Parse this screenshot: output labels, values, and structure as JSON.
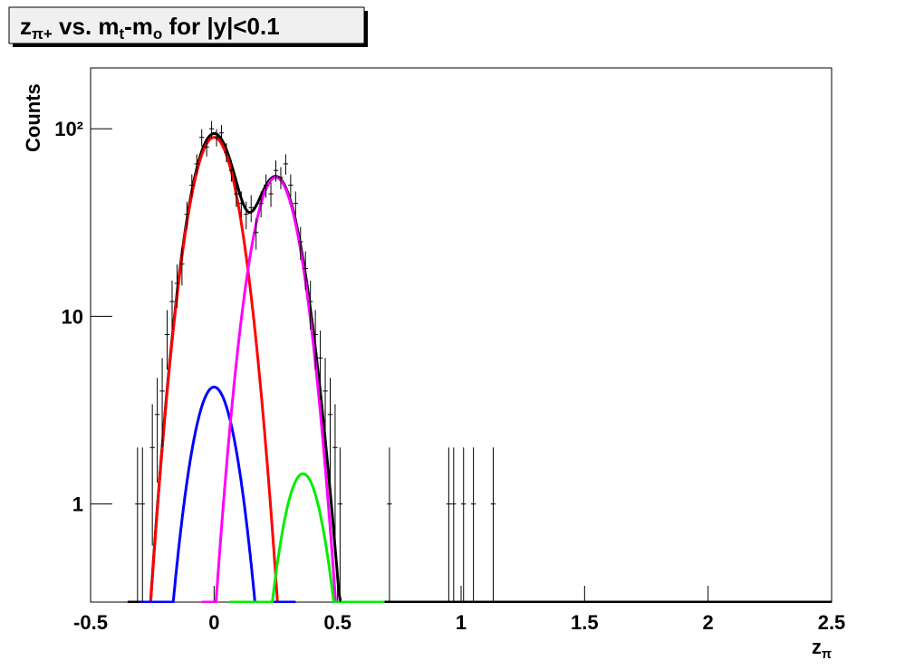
{
  "chart_data": {
    "type": "histogram-fit",
    "title": [
      {
        "text": "z"
      },
      {
        "text": "π+",
        "sub": true
      },
      {
        "text": " vs. m"
      },
      {
        "text": "t",
        "sub": true
      },
      {
        "text": "-m"
      },
      {
        "text": "o",
        "sub": true
      },
      {
        "text": " for |y|<0.1"
      }
    ],
    "x_label": [
      {
        "text": "z"
      },
      {
        "text": "π",
        "sub": true
      }
    ],
    "y_label": "Counts",
    "log_y": true,
    "xlim": [
      -0.5,
      2.5
    ],
    "ylim": [
      0.3,
      211
    ],
    "xticks": [
      -0.5,
      0,
      0.5,
      1,
      1.5,
      2,
      2.5
    ],
    "yticks": [
      1,
      10,
      {
        "value": 100,
        "label": "10²"
      }
    ],
    "x": [
      -0.31,
      -0.29,
      -0.25,
      -0.23,
      -0.21,
      -0.19,
      -0.17,
      -0.15,
      -0.13,
      -0.11,
      -0.09,
      -0.07,
      -0.05,
      -0.03,
      -0.01,
      0.01,
      0.03,
      0.05,
      0.07,
      0.09,
      0.11,
      0.13,
      0.15,
      0.17,
      0.19,
      0.21,
      0.23,
      0.25,
      0.27,
      0.29,
      0.31,
      0.33,
      0.35,
      0.37,
      0.39,
      0.41,
      0.43,
      0.45,
      0.47,
      0.49,
      0.51,
      0.71,
      0.95,
      0.97,
      1.01,
      1.05,
      1.13
    ],
    "values": [
      1,
      1,
      2,
      3,
      4,
      8,
      12,
      15,
      19,
      35,
      50,
      65,
      90,
      80,
      100,
      90,
      95,
      75,
      60,
      45,
      40,
      35,
      38,
      28,
      40,
      50,
      45,
      60,
      55,
      65,
      50,
      40,
      25,
      18,
      12,
      8,
      6,
      4,
      3,
      2,
      1,
      1,
      1,
      1,
      1,
      1,
      1
    ],
    "errors": [
      1,
      1,
      1.4,
      1.7,
      2,
      2.8,
      3.5,
      3.9,
      4.4,
      5.9,
      7.1,
      8.1,
      9.5,
      8.9,
      10,
      9.5,
      9.7,
      8.7,
      7.7,
      6.7,
      6.3,
      5.9,
      6.2,
      5.3,
      6.3,
      7.1,
      6.7,
      7.7,
      7.4,
      8.1,
      7.1,
      6.3,
      5,
      4.2,
      3.5,
      2.8,
      2.4,
      2,
      1.7,
      1.4,
      1,
      1,
      1,
      1,
      1,
      1,
      1
    ],
    "color": "#000000",
    "fits": [
      {
        "color": "#ff0000",
        "amplitude": 90,
        "mean": 0,
        "sigma": 0.076
      },
      {
        "color": "#0000ff",
        "amplitude": 4.2,
        "mean": 0,
        "sigma": 0.072
      },
      {
        "color": "#ff00ff",
        "amplitude": 55,
        "mean": 0.25,
        "sigma": 0.075
      },
      {
        "color": "#00ee00",
        "amplitude": 1.45,
        "mean": 0.36,
        "sigma": 0.07
      }
    ],
    "total_color": "#000000"
  }
}
